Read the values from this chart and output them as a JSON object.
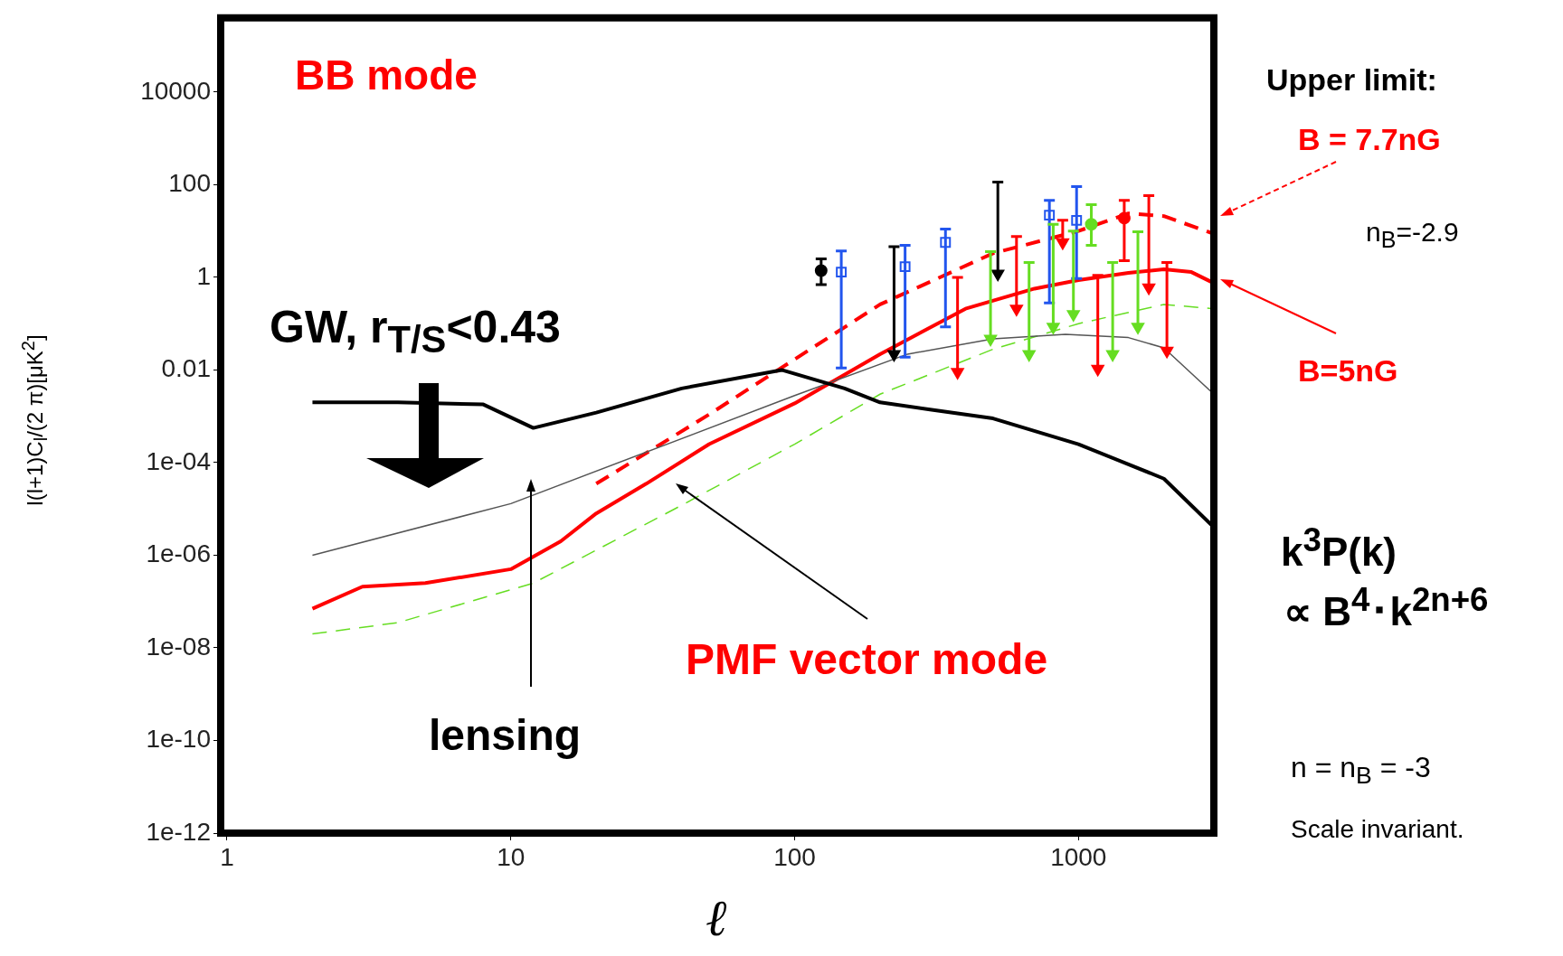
{
  "chart_data": {
    "type": "line",
    "xlabel": "ℓ",
    "ylabel": "l(l+1)C$_{l}$/(2 π)[μK$^{2}$]",
    "log": "xy",
    "grid": false,
    "xlim": [
      0.95,
      3000
    ],
    "xticks": [
      1,
      10,
      100,
      1000
    ],
    "ylim": [
      1e-12,
      400000
    ],
    "yticks": [
      {
        "value": 1e-12,
        "label": "1e-12"
      },
      {
        "value": 1e-10,
        "label": "1e-10"
      },
      {
        "value": 1e-08,
        "label": "1e-08"
      },
      {
        "value": 1e-06,
        "label": "1e-06"
      },
      {
        "value": 0.0001,
        "label": "1e-04"
      },
      0.01,
      1,
      100,
      10000
    ],
    "series": [
      {
        "color": "#000000",
        "x": [
          2,
          4,
          8,
          12,
          20,
          40,
          90,
          150,
          200,
          300,
          500,
          1000,
          2000,
          3000
        ],
        "values": [
          0.002,
          0.002,
          0.0018,
          0.00056,
          0.0012,
          0.004,
          0.01,
          0.004,
          0.002,
          0.0014,
          0.0009,
          0.00025,
          4.5e-05,
          4e-06
        ]
      },
      {
        "color": "#555555",
        "x": [
          2,
          10,
          100,
          250,
          500,
          900,
          1500,
          2000,
          3000
        ],
        "values": [
          1e-06,
          1.3e-05,
          0.0028,
          0.022,
          0.047,
          0.059,
          0.05,
          0.03,
          0.003
        ]
      },
      {
        "color": "#ff0000",
        "x": [
          2,
          3,
          5,
          10,
          15,
          20,
          30,
          50,
          100,
          200,
          400,
          700,
          1000,
          1500,
          2000,
          2500,
          3000
        ],
        "values": [
          7e-08,
          2.1e-07,
          2.5e-07,
          5e-07,
          2e-06,
          8e-06,
          3.5e-05,
          0.00025,
          0.0019,
          0.022,
          0.21,
          0.57,
          0.87,
          1.25,
          1.5,
          1.3,
          0.75
        ]
      },
      {
        "color": "#ff0000",
        "line_style": "dashed",
        "x": [
          20,
          50,
          100,
          200,
          500,
          1000,
          1500,
          2000,
          3000
        ],
        "values": [
          3.5e-05,
          0.0011,
          0.017,
          0.26,
          3.3,
          10,
          24,
          21,
          8.7
        ]
      },
      {
        "color": "#66dd22",
        "line_style": "dashed",
        "x": [
          2,
          4,
          12,
          40,
          100,
          200,
          500,
          1000,
          2000,
          3000
        ],
        "values": [
          2e-08,
          3.5e-08,
          2.5e-07,
          1.2e-05,
          0.00025,
          0.003,
          0.028,
          0.1,
          0.26,
          0.21
        ]
      },
      {
        "type": "scatter",
        "marker": "square",
        "color": "#2255ee",
        "x": [
          146,
          245,
          340,
          790,
          985
        ],
        "values": [
          1.3,
          1.7,
          5.7,
          22,
          17
        ],
        "errors": [
          [
            0.011,
            3.7
          ],
          [
            0.019,
            4.9
          ],
          [
            0.085,
            11
          ],
          [
            0.28,
            46
          ],
          [
            0.94,
            91
          ]
        ]
      },
      {
        "type": "scatter",
        "marker": "circle",
        "color": "#000000",
        "x": [
          124
        ],
        "values": [
          1.4
        ],
        "errors": [
          [
            0.7,
            2.5
          ]
        ]
      },
      {
        "type": "scatter",
        "marker": "circle",
        "color": "#66dd22",
        "x": [
          1110
        ],
        "values": [
          14
        ],
        "errors": [
          [
            4.9,
            37
          ]
        ]
      },
      {
        "type": "scatter",
        "marker": "circle",
        "color": "#ff0000",
        "x": [
          1450
        ],
        "values": [
          19
        ],
        "errors": [
          [
            2.3,
            46
          ]
        ]
      },
      {
        "type": "scatter",
        "marker": "triangle",
        "color": "#000000",
        "x": [
          224,
          520
        ],
        "values": [
          0.022,
          1.2
        ],
        "errors": [
          [
            0.022,
            4.6
          ],
          [
            1.2,
            114
          ]
        ]
      },
      {
        "type": "scatter",
        "marker": "triangle",
        "color": "#ff0000",
        "x": [
          375,
          605,
          880,
          1170,
          1770,
          2050
        ],
        "values": [
          0.009,
          0.21,
          5.7,
          0.0105,
          0.6,
          0.026
        ],
        "errors": [
          [
            0.009,
            1
          ],
          [
            0.21,
            7.6
          ],
          [
            5.7,
            17
          ],
          [
            0.0105,
            1.1
          ],
          [
            0.6,
            58
          ],
          [
            0.026,
            2.1
          ]
        ]
      },
      {
        "type": "scatter",
        "marker": "triangle",
        "color": "#66dd22",
        "x": [
          490,
          670,
          815,
          960,
          1320,
          1620
        ],
        "values": [
          0.047,
          0.022,
          0.085,
          0.16,
          0.022,
          0.085
        ],
        "errors": [
          [
            0.047,
            3.6
          ],
          [
            0.022,
            2.1
          ],
          [
            0.085,
            14
          ],
          [
            0.16,
            10
          ],
          [
            0.022,
            2.1
          ],
          [
            0.085,
            9.6
          ]
        ]
      }
    ],
    "annotations": [
      "BB mode",
      "GW, r$_{T/S}$<0.43",
      "lensing",
      "PMF vector mode",
      "Upper limit:",
      "B = 7.7nG",
      "n$_{B}$=-2.9",
      "B=5nG",
      "k$^{3}$P(k)",
      "∝ B$^{4}$･k$^{2n+6}$",
      "n = n$_{B}$ = -3",
      "Scale invariant."
    ]
  }
}
